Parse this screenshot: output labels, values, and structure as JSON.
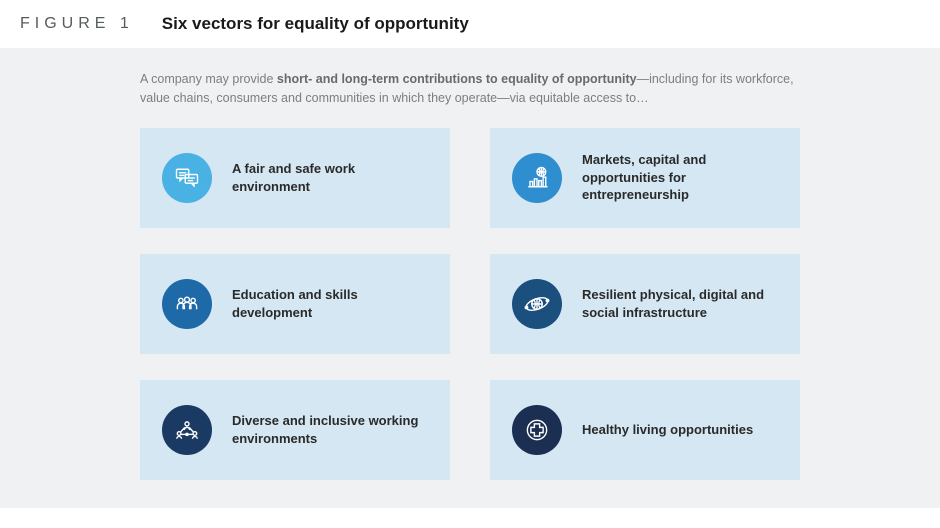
{
  "figure": {
    "label": "FIGURE 1",
    "title": "Six vectors for equality of opportunity"
  },
  "intro": {
    "prefix": "A company may provide ",
    "bold": "short- and long-term contributions to equality of opportunity",
    "suffix": "—including for its workforce, value chains, consumers and communities in which they operate—via equitable access to…"
  },
  "layout": {
    "page_bg": "#ffffff",
    "body_bg": "#f0f1f2",
    "card_bg": "#d4e7f2",
    "label_color": "#555b5e",
    "title_color": "#1a1a1a",
    "intro_color": "#7a7f82",
    "card_text_color": "#2a2a2a",
    "columns": 2,
    "rows": 3,
    "card_gap_row": 26,
    "card_gap_col": 40,
    "icon_diameter": 50,
    "icon_stroke": "#ffffff"
  },
  "cards": [
    {
      "id": "fair-safe-work",
      "label": "A fair and safe work environment",
      "icon": "chat-group",
      "circle_color": "#49b1e3"
    },
    {
      "id": "markets-capital",
      "label": "Markets, capital and opportunities for entrepreneurship",
      "icon": "globe-chart",
      "circle_color": "#2f8ecf"
    },
    {
      "id": "education-skills",
      "label": "Education and skills development",
      "icon": "people-row",
      "circle_color": "#1e6aa8"
    },
    {
      "id": "resilient-infra",
      "label": "Resilient physical, digital and social infrastructure",
      "icon": "orbit-globe",
      "circle_color": "#1b4f7e"
    },
    {
      "id": "diverse-inclusive",
      "label": "Diverse and inclusive working environments",
      "icon": "network-people",
      "circle_color": "#1b3a63"
    },
    {
      "id": "healthy-living",
      "label": "Healthy living opportunities",
      "icon": "health-cross",
      "circle_color": "#1a2f52"
    }
  ]
}
